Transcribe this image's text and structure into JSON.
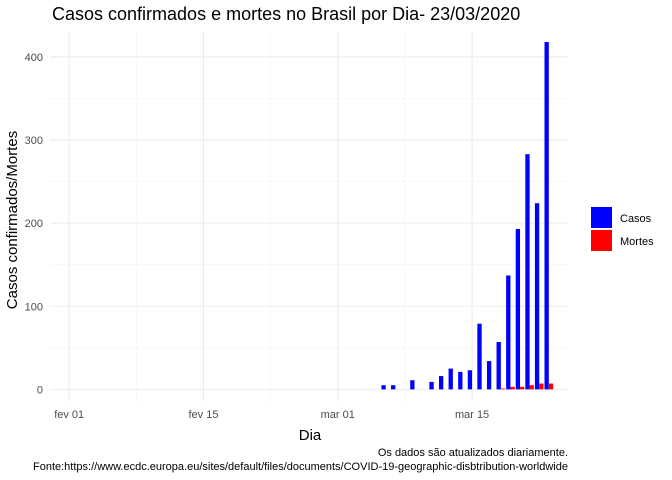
{
  "chart_data": {
    "type": "bar",
    "title": "Casos confirmados e mortes no Brasil por Dia-  23/03/2020",
    "xlabel": "Dia",
    "ylabel": "Casos confirmados/Mortes",
    "caption_lines": [
      "Os dados são atualizados diariamente.",
      "Fonte:https://www.ecdc.europa.eu/sites/default/files/documents/COVID-19-geographic-disbtribution-worldwide"
    ],
    "x_ticks": [
      {
        "day": 1,
        "label": "fev 01"
      },
      {
        "day": 15,
        "label": "fev 15"
      },
      {
        "day": 29,
        "label": "mar 01"
      },
      {
        "day": 43,
        "label": "mar 15"
      }
    ],
    "xlim": [
      -1,
      53
    ],
    "ylim": [
      -14,
      430
    ],
    "y_ticks": [
      0,
      100,
      200,
      300,
      400
    ],
    "grid": true,
    "legend_position": "right",
    "dates": [
      "2020-03-06",
      "2020-03-07",
      "2020-03-09",
      "2020-03-11",
      "2020-03-12",
      "2020-03-13",
      "2020-03-14",
      "2020-03-15",
      "2020-03-16",
      "2020-03-17",
      "2020-03-18",
      "2020-03-19",
      "2020-03-20",
      "2020-03-21",
      "2020-03-22",
      "2020-03-23"
    ],
    "x_days": [
      34,
      35,
      37,
      39,
      40,
      41,
      42,
      43,
      44,
      45,
      46,
      47,
      48,
      49,
      50,
      51
    ],
    "series": [
      {
        "name": "Casos",
        "color": "#0000ff",
        "values": [
          5,
          5,
          11,
          9,
          16,
          25,
          21,
          23,
          79,
          34,
          57,
          137,
          193,
          283,
          224,
          418
        ]
      },
      {
        "name": "Mortes",
        "color": "#ff0000",
        "values": [
          0,
          0,
          0,
          0,
          0,
          0,
          0,
          0,
          0,
          0,
          1,
          3,
          3,
          5,
          7,
          7
        ]
      }
    ]
  }
}
